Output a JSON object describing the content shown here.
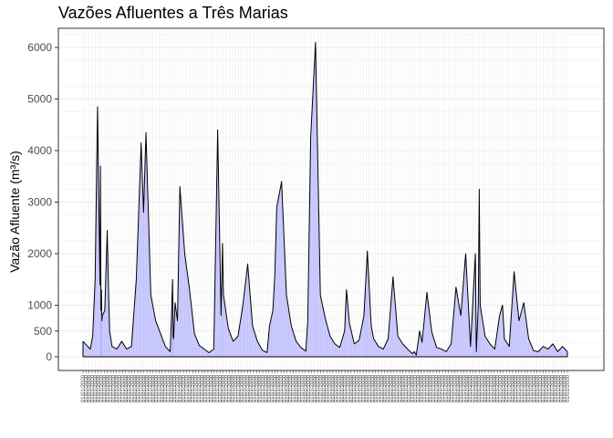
{
  "chart_data": {
    "type": "area",
    "title": "Vazões Afluentes a Três Marias",
    "xlabel": "",
    "ylabel": "Vazão Afluente (m³/s)",
    "ylim": [
      0,
      6400
    ],
    "yticks": [
      0,
      500,
      1000,
      2000,
      3000,
      4000,
      5000,
      6000
    ],
    "grid": true,
    "legend": "none",
    "colors": {
      "line": "#000000",
      "fill": "#ccccff",
      "fill_bars": "#9999ee",
      "grid": "#ebebeb",
      "panel_border": "#333333"
    },
    "x_tick_label_text": "01/01/2000",
    "x_tick_count": 160,
    "x_span": [
      0,
      100
    ],
    "series": [
      {
        "x": [
          0,
          1.5,
          2.0,
          2.5,
          3.0,
          3.5,
          3.6,
          3.7,
          3.8,
          3.9,
          4.0,
          4.5,
          5.0,
          5.3,
          5.5,
          6.0,
          7.0,
          8.0,
          9.0,
          10.0,
          11.0,
          12.0,
          12.5,
          13.0,
          14.0,
          15.0,
          16.0,
          17.0,
          18.0,
          18.3,
          18.5,
          18.6,
          18.7,
          19.0,
          19.5,
          20.0,
          21.0,
          22.0,
          23.0,
          24.0,
          25.0,
          26.0,
          27.0,
          27.8,
          28.5,
          28.8,
          29.0,
          30.0,
          31.0,
          32.0,
          33.0,
          34.0,
          35.0,
          36.0,
          37.0,
          38.0,
          38.5,
          39.2,
          39.6,
          40.0,
          41.0,
          42.0,
          43.0,
          44.0,
          45.0,
          46.0,
          46.4,
          47.0,
          48.0,
          49.0,
          50.0,
          51.0,
          52.0,
          53.0,
          54.0,
          54.4,
          55.0,
          56.0,
          57.0,
          58.0,
          58.7,
          59.5,
          60.0,
          61.0,
          62.0,
          63.0,
          64.0,
          65.0,
          66.0,
          67.0,
          68.0,
          68.4,
          68.8,
          69.5,
          70.0,
          71.0,
          72.0,
          73.0,
          74.0,
          75.0,
          76.0,
          77.0,
          78.0,
          79.0,
          80.0,
          81.0,
          81.2,
          81.6,
          81.8,
          82.0,
          82.5,
          83.0,
          84.0,
          85.0,
          86.0,
          86.6,
          87.0,
          88.0,
          89.0,
          90.0,
          91.0,
          92.0,
          93.0,
          94.0,
          95.0,
          96.0,
          97.0,
          98.0,
          99.0,
          100.0
        ],
        "y": [
          300,
          150,
          400,
          1500,
          4850,
          1400,
          3700,
          900,
          1300,
          700,
          800,
          900,
          2450,
          1200,
          500,
          200,
          150,
          300,
          150,
          200,
          1500,
          4150,
          2800,
          4350,
          1200,
          700,
          450,
          200,
          100,
          900,
          1500,
          400,
          350,
          1050,
          700,
          3300,
          2000,
          1300,
          450,
          220,
          150,
          80,
          150,
          4400,
          800,
          2200,
          1200,
          550,
          300,
          400,
          1000,
          1800,
          600,
          300,
          130,
          80,
          600,
          900,
          1600,
          2900,
          3400,
          1200,
          600,
          300,
          180,
          110,
          700,
          4250,
          6100,
          1200,
          750,
          400,
          250,
          180,
          500,
          1300,
          650,
          250,
          320,
          800,
          2050,
          600,
          350,
          200,
          150,
          350,
          1550,
          400,
          250,
          150,
          60,
          100,
          30,
          500,
          280,
          1250,
          480,
          180,
          150,
          100,
          250,
          1350,
          800,
          2000,
          200,
          2000,
          100,
          1000,
          3250,
          1000,
          700,
          400,
          250,
          150,
          800,
          1000,
          350,
          200,
          1650,
          700,
          1050,
          350,
          120,
          100,
          200,
          150,
          250,
          100,
          200,
          100
        ]
      }
    ]
  }
}
